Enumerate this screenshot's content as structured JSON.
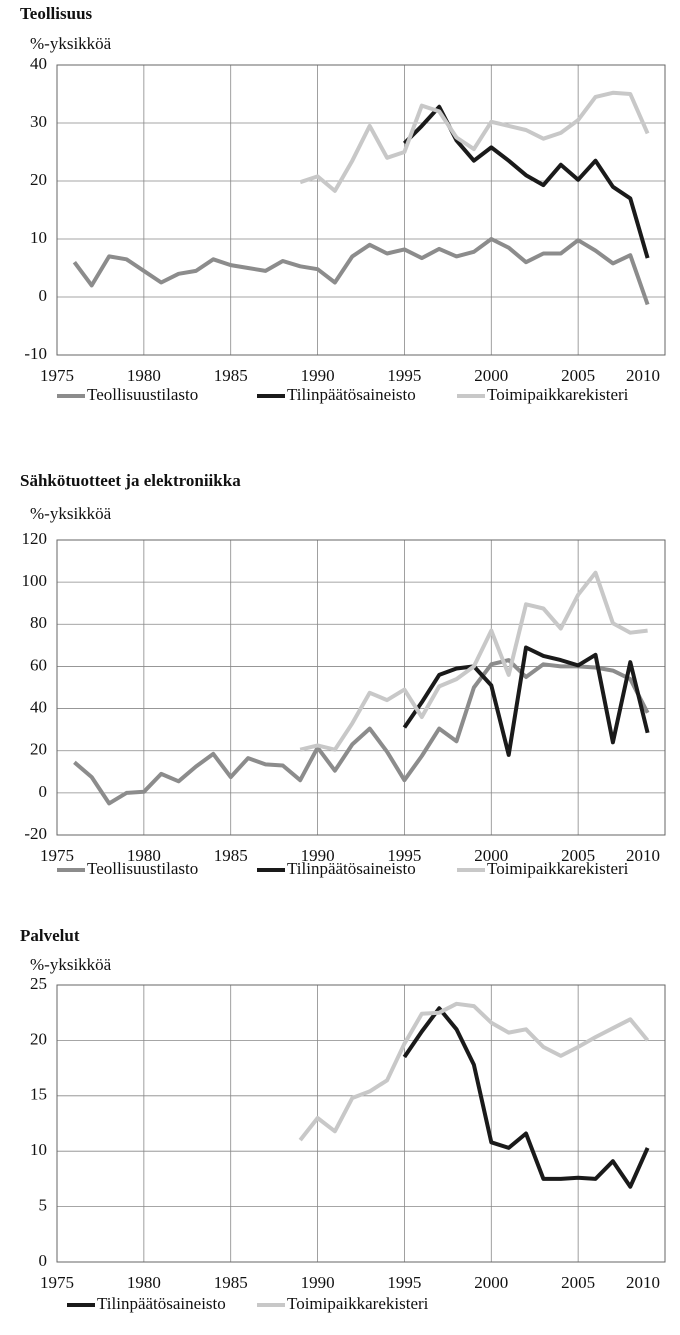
{
  "chart_data": [
    {
      "type": "line",
      "title": "Teollisuus",
      "ylabel": "%-yksikköä",
      "x": [
        1976,
        1977,
        1978,
        1979,
        1980,
        1981,
        1982,
        1983,
        1984,
        1985,
        1986,
        1987,
        1988,
        1989,
        1990,
        1991,
        1992,
        1993,
        1994,
        1995,
        1996,
        1997,
        1998,
        1999,
        2000,
        2001,
        2002,
        2003,
        2004,
        2005,
        2006,
        2007,
        2008,
        2009
      ],
      "xlim": [
        1975,
        2010
      ],
      "xticks": [
        1975,
        1980,
        1985,
        1990,
        1995,
        2000,
        2005,
        2010
      ],
      "ylim": [
        -10,
        40
      ],
      "yticks": [
        -10,
        0,
        10,
        20,
        30,
        40
      ],
      "grid": true,
      "series": [
        {
          "name": "Teollisuustilasto",
          "color": "#8c8c8c",
          "values": [
            6,
            2,
            7,
            6.5,
            4.5,
            2.5,
            4,
            4.5,
            6.5,
            5.5,
            5,
            4.5,
            6.2,
            5.3,
            4.8,
            2.5,
            7,
            9,
            7.5,
            8.2,
            6.7,
            8.3,
            7,
            7.8,
            10,
            8.5,
            6,
            7.5,
            7.5,
            9.8,
            8,
            5.8,
            7.2,
            -1.3
          ]
        },
        {
          "name": "Tilinpäätösaineisto",
          "color": "#1a1a1a",
          "values": [
            null,
            null,
            null,
            null,
            null,
            null,
            null,
            null,
            null,
            null,
            null,
            null,
            null,
            null,
            null,
            null,
            null,
            null,
            null,
            26.5,
            29.5,
            32.8,
            27,
            23.5,
            25.8,
            23.5,
            21,
            19.3,
            22.8,
            20.2,
            23.5,
            19,
            17,
            6.7
          ]
        },
        {
          "name": "Toimipaikkarekisteri",
          "color": "#c8c8c8",
          "values": [
            null,
            null,
            null,
            null,
            null,
            null,
            null,
            null,
            null,
            null,
            null,
            null,
            null,
            19.8,
            20.8,
            18.3,
            23.5,
            29.5,
            24,
            25,
            33,
            32,
            27.5,
            25.5,
            30.2,
            29.5,
            28.8,
            27.3,
            28.3,
            30.5,
            34.5,
            35.2,
            35,
            28.2
          ]
        }
      ]
    },
    {
      "type": "line",
      "title": "Sähkötuotteet ja elektroniikka",
      "ylabel": "%-yksikköä",
      "x": [
        1976,
        1977,
        1978,
        1979,
        1980,
        1981,
        1982,
        1983,
        1984,
        1985,
        1986,
        1987,
        1988,
        1989,
        1990,
        1991,
        1992,
        1993,
        1994,
        1995,
        1996,
        1997,
        1998,
        1999,
        2000,
        2001,
        2002,
        2003,
        2004,
        2005,
        2006,
        2007,
        2008,
        2009
      ],
      "xlim": [
        1975,
        2010
      ],
      "xticks": [
        1975,
        1980,
        1985,
        1990,
        1995,
        2000,
        2005,
        2010
      ],
      "ylim": [
        -20,
        120
      ],
      "yticks": [
        -20,
        0,
        20,
        40,
        60,
        80,
        100,
        120
      ],
      "grid": true,
      "series": [
        {
          "name": "Teollisuustilasto",
          "color": "#8c8c8c",
          "values": [
            14.5,
            7.5,
            -5,
            0,
            0.5,
            9,
            5.5,
            12.5,
            18.5,
            7.5,
            16.5,
            13.5,
            13,
            6,
            21.5,
            10.5,
            23,
            30.5,
            19.5,
            6,
            17.5,
            30.5,
            24.5,
            50,
            61,
            63,
            55,
            61,
            60,
            60,
            59.5,
            58,
            54,
            38
          ]
        },
        {
          "name": "Tilinpäätösaineisto",
          "color": "#1a1a1a",
          "values": [
            null,
            null,
            null,
            null,
            null,
            null,
            null,
            null,
            null,
            null,
            null,
            null,
            null,
            null,
            null,
            null,
            null,
            null,
            null,
            31,
            43,
            56,
            59,
            60,
            51,
            18,
            69,
            65,
            63,
            60.5,
            65.5,
            24,
            62,
            28.5
          ]
        },
        {
          "name": "Toimipaikkarekisteri",
          "color": "#c8c8c8",
          "values": [
            null,
            null,
            null,
            null,
            null,
            null,
            null,
            null,
            null,
            null,
            null,
            null,
            null,
            20.5,
            22.5,
            20.5,
            33,
            47.5,
            44,
            49,
            36,
            50.5,
            54,
            60,
            77,
            56,
            89.5,
            87.5,
            78,
            94,
            104.5,
            80.5,
            76,
            77
          ]
        }
      ]
    },
    {
      "type": "line",
      "title": "Palvelut",
      "ylabel": "%-yksikköä",
      "x": [
        1989,
        1990,
        1991,
        1992,
        1993,
        1994,
        1995,
        1996,
        1997,
        1998,
        1999,
        2000,
        2001,
        2002,
        2003,
        2004,
        2005,
        2006,
        2007,
        2008,
        2009
      ],
      "xlim": [
        1975,
        2010
      ],
      "xticks": [
        1975,
        1980,
        1985,
        1990,
        1995,
        2000,
        2005,
        2010
      ],
      "ylim": [
        0,
        25
      ],
      "yticks": [
        0,
        5,
        10,
        15,
        20,
        25
      ],
      "grid": true,
      "series": [
        {
          "name": "Tilinpäätösaineisto",
          "color": "#1a1a1a",
          "values": [
            null,
            null,
            null,
            null,
            null,
            null,
            18.5,
            20.8,
            22.9,
            21,
            17.8,
            10.8,
            10.3,
            11.6,
            7.5,
            7.5,
            7.6,
            7.5,
            9.1,
            6.8,
            10.3
          ]
        },
        {
          "name": "Toimipaikkarekisteri",
          "color": "#c8c8c8",
          "values": [
            11,
            13,
            11.8,
            14.8,
            15.4,
            16.4,
            19.7,
            22.4,
            22.5,
            23.3,
            23.1,
            21.6,
            20.7,
            21,
            19.4,
            18.6,
            19.4,
            20.3,
            21.1,
            21.9,
            20
          ]
        }
      ]
    }
  ]
}
